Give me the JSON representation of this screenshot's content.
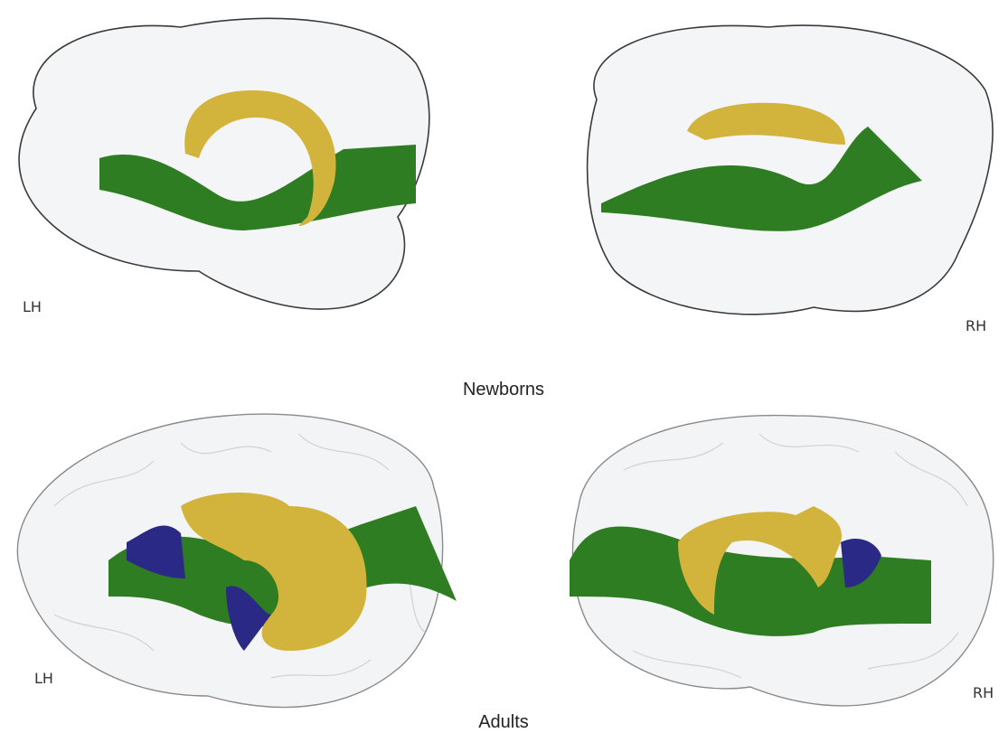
{
  "sections": [
    {
      "title": "Newborns",
      "left_label": "LH",
      "right_label": "RH"
    },
    {
      "title": "Adults",
      "left_label": "LH",
      "right_label": "RH"
    }
  ]
}
